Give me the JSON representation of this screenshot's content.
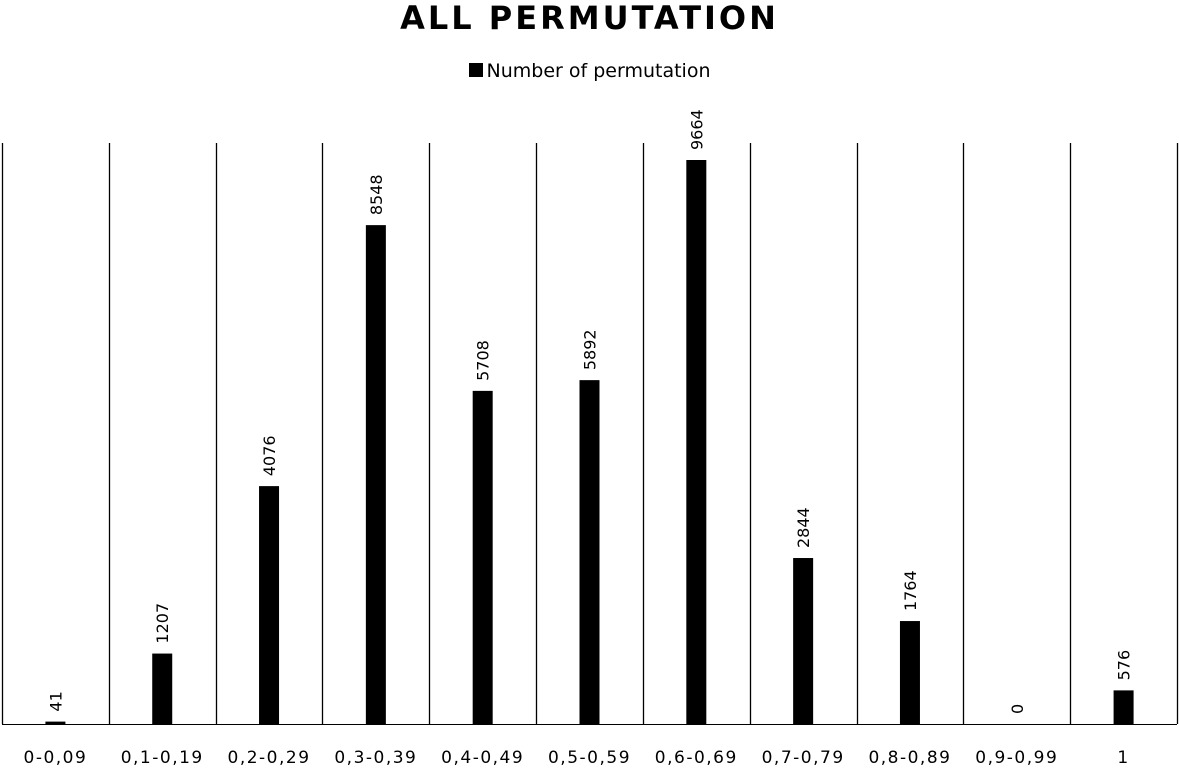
{
  "chart_data": {
    "type": "bar",
    "title": "ALL PERMUTATION",
    "legend": [
      "Number of permutation"
    ],
    "legend_position": "top",
    "categories": [
      "0-0,09",
      "0,1-0,19",
      "0,2-0,29",
      "0,3-0,39",
      "0,4-0,49",
      "0,5-0,59",
      "0,6-0,69",
      "0,7-0,79",
      "0,8-0,89",
      "0,9-0,99",
      "1"
    ],
    "series": [
      {
        "name": "Number of permutation",
        "values": [
          41,
          1207,
          4076,
          8548,
          5708,
          5892,
          9664,
          2844,
          1764,
          0,
          576
        ]
      }
    ],
    "ylim": [
      0,
      10000
    ],
    "grid": "vertical lines between categories",
    "bar_color": "#000000"
  }
}
